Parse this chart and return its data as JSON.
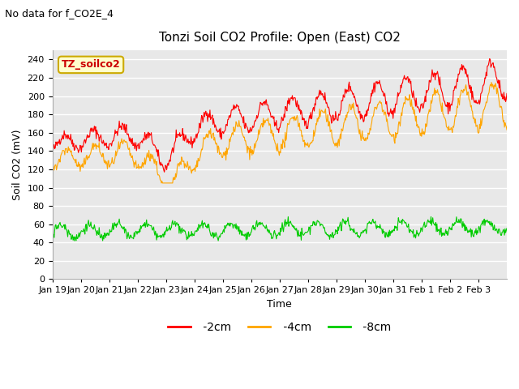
{
  "title": "Tonzi Soil CO2 Profile: Open (East) CO2",
  "subtitle": "No data for f_CO2E_4",
  "ylabel": "Soil CO2 (mV)",
  "xlabel": "Time",
  "legend_title": "TZ_soilco2",
  "ylim": [
    0,
    250
  ],
  "yticks": [
    0,
    20,
    40,
    60,
    80,
    100,
    120,
    140,
    160,
    180,
    200,
    220,
    240
  ],
  "xtick_labels": [
    "Jan 19",
    "Jan 20",
    "Jan 21",
    "Jan 22",
    "Jan 23",
    "Jan 24",
    "Jan 25",
    "Jan 26",
    "Jan 27",
    "Jan 28",
    "Jan 29",
    "Jan 30",
    "Jan 31",
    "Feb 1",
    "Feb 2",
    "Feb 3"
  ],
  "colors": {
    "2cm": "#ff0000",
    "4cm": "#ffa500",
    "8cm": "#00cc00"
  },
  "fig_bg_color": "#ffffff",
  "plot_bg_color": "#e8e8e8",
  "legend_box_color": "#ffffcc",
  "legend_box_edge": "#ccaa00",
  "legend_text_color": "#cc0000",
  "title_fontsize": 11,
  "axis_fontsize": 9,
  "tick_fontsize": 8,
  "subtitle_fontsize": 9
}
